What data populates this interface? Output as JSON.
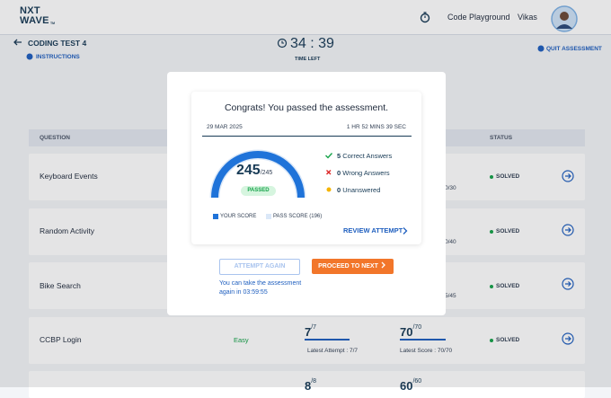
{
  "header": {
    "logo": {
      "line1": "NXT",
      "line2": "WAVE",
      "mark": "TM"
    },
    "nav": "Code Playground",
    "user": "Vikas"
  },
  "test": {
    "title": "CODING TEST 4",
    "instructions": "INSTRUCTIONS",
    "timer": "34 : 39",
    "timer_label": "TIME LEFT",
    "quit": "QUIT ASSESSMENT"
  },
  "table": {
    "columns": [
      "QUESTION",
      "STATUS"
    ],
    "rows": [
      {
        "question": "Keyboard Events",
        "partial": "0/30",
        "status": "SOLVED"
      },
      {
        "question": "Random Activity",
        "partial": "0/40",
        "status": "SOLVED"
      },
      {
        "question": "Bike Search",
        "partial": "5/45",
        "status": "SOLVED"
      },
      {
        "question": "CCBP Login",
        "difficulty": "Easy",
        "tests": "7",
        "tests_total": "/7",
        "tests_note": "Latest Attempt : 7/7",
        "score": "70",
        "score_total": "/70",
        "score_note": "Latest Score : 70/70",
        "status": "SOLVED"
      },
      {
        "tests": "8",
        "tests_total": "/8",
        "score": "60",
        "score_total": "/60"
      }
    ]
  },
  "modal": {
    "title": "Congrats! You passed the assessment.",
    "date": "29 MAR 2025",
    "duration": "1 HR 52 MINS 39 SEC",
    "score": "245",
    "score_total": "/245",
    "result": "PASSED",
    "summary": [
      {
        "count": "5",
        "label": "Correct Answers"
      },
      {
        "count": "0",
        "label": "Wrong Answers"
      },
      {
        "count": "0",
        "label": "Unanswered"
      }
    ],
    "legend": [
      "YOUR SCORE",
      "PASS SCORE (196)"
    ],
    "review": "REVIEW ATTEMPT",
    "attempt_again": "ATTEMPT AGAIN",
    "proceed": "PROCEED TO NEXT",
    "retake_note": [
      "You can take the assessment",
      "again in 03:59:55"
    ]
  }
}
